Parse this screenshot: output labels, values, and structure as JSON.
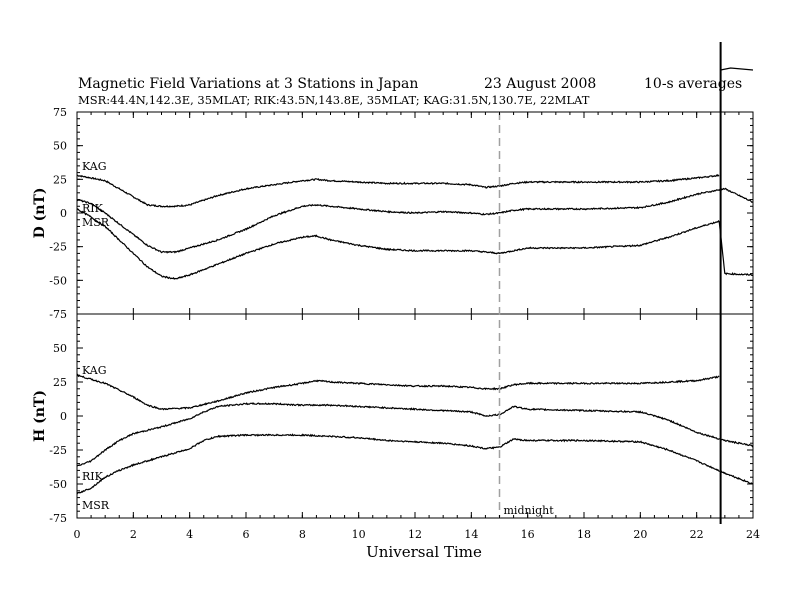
{
  "chart_data": {
    "type": "line",
    "title": "Magnetic Field Variations at 3 Stations in Japan",
    "date": "23  August  2008",
    "averaging": "10-s averages",
    "subtitle": "MSR:44.4N,142.3E, 35MLAT;  RIK:43.5N,143.8E, 35MLAT;  KAG:31.5N,130.7E, 22MLAT",
    "xlabel": "Universal Time",
    "xlim": [
      0,
      24
    ],
    "xticks": [
      "0",
      "2",
      "4",
      "6",
      "8",
      "10",
      "12",
      "14",
      "16",
      "18",
      "20",
      "22",
      "24"
    ],
    "midnight_label": "midnight",
    "midnight_ut": 15,
    "event_ut": 22.85,
    "panels": [
      {
        "ylabel": "D (nT)",
        "ylim": [
          -75,
          75
        ],
        "yticks": [
          "75",
          "50",
          "25",
          "0",
          "-25",
          "-50",
          "-75"
        ],
        "series": [
          {
            "name": "KAG",
            "x": [
              0,
              1,
              2,
              2.5,
              3,
              3.5,
              4,
              5,
              6,
              7,
              8,
              8.5,
              9,
              10,
              11,
              12,
              13,
              14,
              14.5,
              15,
              15.5,
              16,
              18,
              20,
              21,
              22,
              22.8
            ],
            "y": [
              28,
              24,
              12,
              6,
              5,
              5,
              6,
              13,
              18,
              21,
              24,
              25,
              24,
              23,
              22,
              22,
              22,
              21,
              19,
              20,
              22,
              23,
              23,
              23,
              24,
              26,
              28
            ]
          },
          {
            "name": "RIK",
            "x": [
              0,
              0.5,
              1,
              1.5,
              2,
              2.5,
              3,
              3.5,
              4,
              5,
              6,
              7,
              8,
              8.5,
              9,
              10,
              11,
              12,
              13,
              14,
              14.5,
              15,
              15.5,
              16,
              18,
              20,
              21,
              22,
              23,
              24
            ],
            "y": [
              10,
              7,
              0,
              -8,
              -16,
              -24,
              -29,
              -29,
              -26,
              -20,
              -12,
              -2,
              5,
              6,
              5,
              3,
              1,
              0,
              1,
              0,
              -1,
              0,
              2,
              3,
              3,
              4,
              8,
              14,
              18,
              8
            ]
          },
          {
            "name": "MSR",
            "x": [
              0,
              0.5,
              1,
              1.5,
              2,
              2.5,
              3,
              3.5,
              4,
              5,
              6,
              7,
              8,
              8.5,
              9,
              10,
              11,
              12,
              13,
              14,
              14.5,
              15,
              15.5,
              16,
              18,
              20,
              21,
              22,
              22.8,
              23,
              24
            ],
            "y": [
              3,
              -3,
              -10,
              -20,
              -30,
              -40,
              -47,
              -49,
              -46,
              -38,
              -30,
              -23,
              -18,
              -17,
              -20,
              -24,
              -27,
              -28,
              -28,
              -28,
              -29,
              -30,
              -28,
              -26,
              -26,
              -24,
              -18,
              -11,
              -6,
              -45,
              -46
            ]
          }
        ]
      },
      {
        "ylabel": "H (nT)",
        "ylim": [
          -75,
          75
        ],
        "yticks": [
          "75",
          "50",
          "25",
          "0",
          "-25",
          "-50",
          "-75"
        ],
        "series": [
          {
            "name": "KAG",
            "x": [
              0,
              1,
              2,
              2.5,
              3,
              4,
              5,
              6,
              7,
              8,
              8.5,
              9,
              10,
              11,
              12,
              13,
              14,
              14.5,
              15,
              15.5,
              16,
              18,
              20,
              21,
              22,
              22.8
            ],
            "y": [
              30,
              24,
              14,
              8,
              5,
              6,
              11,
              17,
              21,
              24,
              26,
              25,
              24,
              23,
              22,
              22,
              21,
              20,
              20,
              23,
              24,
              24,
              24,
              25,
              26,
              29
            ]
          },
          {
            "name": "RIK",
            "x": [
              0,
              0.5,
              1,
              1.5,
              2,
              3,
              4,
              4.5,
              5,
              6,
              7,
              8,
              9,
              10,
              11,
              12,
              13,
              14,
              14.5,
              15,
              15.5,
              16,
              18,
              20,
              21,
              22,
              23,
              24
            ],
            "y": [
              -37,
              -33,
              -25,
              -18,
              -13,
              -8,
              -2,
              3,
              7,
              9,
              9,
              8,
              8,
              7,
              6,
              5,
              4,
              3,
              0,
              1,
              7,
              5,
              4,
              3,
              -3,
              -12,
              -18,
              -22
            ]
          },
          {
            "name": "MSR",
            "x": [
              0,
              0.5,
              1,
              1.5,
              2,
              3,
              4,
              4.5,
              5,
              6,
              7,
              8,
              9,
              10,
              11,
              12,
              13,
              14,
              14.5,
              15,
              15.5,
              16,
              18,
              20,
              21,
              22,
              23,
              24
            ],
            "y": [
              -57,
              -53,
              -45,
              -40,
              -36,
              -30,
              -24,
              -18,
              -15,
              -14,
              -14,
              -14,
              -15,
              -16,
              -18,
              -19,
              -20,
              -22,
              -24,
              -23,
              -17,
              -18,
              -18,
              -19,
              -25,
              -33,
              -42,
              -50
            ]
          }
        ]
      }
    ]
  }
}
